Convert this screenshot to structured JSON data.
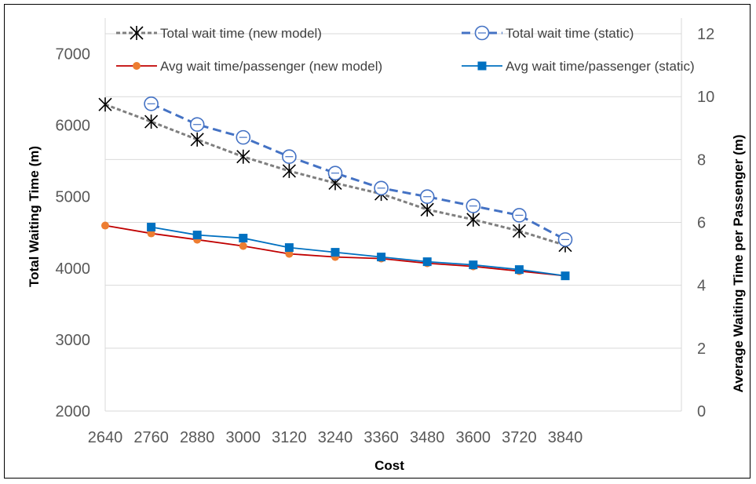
{
  "chart_data": {
    "type": "line",
    "title": "",
    "xlabel": "Cost",
    "ylabel": "Total Waiting Time (m)",
    "y2label": "Average Waiting Time per Passenger (m)",
    "x": [
      2640,
      2760,
      2880,
      3000,
      3120,
      3240,
      3360,
      3480,
      3600,
      3720,
      3840
    ],
    "ylim": [
      2000,
      7500
    ],
    "yticks": [
      2000,
      3000,
      4000,
      5000,
      6000,
      7000
    ],
    "y2lim": [
      0,
      12.5
    ],
    "y2ticks": [
      0,
      2,
      4,
      6,
      8,
      10,
      12
    ],
    "grid": true,
    "legend_position": "top",
    "series": [
      {
        "name": "Total wait time (new model)",
        "axis": "left",
        "color": "#7f7f7f",
        "marker": "asterisk",
        "line_style": "dotted",
        "x": [
          2640,
          2760,
          2880,
          3000,
          3120,
          3240,
          3360,
          3480,
          3600,
          3720,
          3840
        ],
        "values": [
          6290,
          6050,
          5800,
          5560,
          5360,
          5190,
          5040,
          4820,
          4680,
          4520,
          4320
        ]
      },
      {
        "name": "Total wait time (static)",
        "axis": "left",
        "color": "#4472c4",
        "marker": "circle-open",
        "line_style": "dashed",
        "x": [
          2760,
          2880,
          3000,
          3120,
          3240,
          3360,
          3480,
          3600,
          3720,
          3840
        ],
        "values": [
          6300,
          6010,
          5830,
          5560,
          5330,
          5120,
          5000,
          4870,
          4740,
          4400
        ]
      },
      {
        "name": "Avg wait time/passenger (new model)",
        "axis": "right",
        "color": "#c00000",
        "marker_color": "#ed7d31",
        "marker": "circle",
        "line_style": "solid",
        "x": [
          2640,
          2760,
          2880,
          3000,
          3120,
          3240,
          3360,
          3480,
          3600,
          3720,
          3840
        ],
        "values": [
          5.9,
          5.65,
          5.45,
          5.25,
          5.0,
          4.9,
          4.85,
          4.7,
          4.6,
          4.45,
          4.3
        ]
      },
      {
        "name": "Avg wait time/passenger (static)",
        "axis": "right",
        "color": "#0070c0",
        "marker": "square",
        "line_style": "solid",
        "x": [
          2760,
          2880,
          3000,
          3120,
          3240,
          3360,
          3480,
          3600,
          3720,
          3840
        ],
        "values": [
          5.85,
          5.6,
          5.5,
          5.2,
          5.05,
          4.9,
          4.75,
          4.65,
          4.5,
          4.3
        ]
      }
    ]
  }
}
